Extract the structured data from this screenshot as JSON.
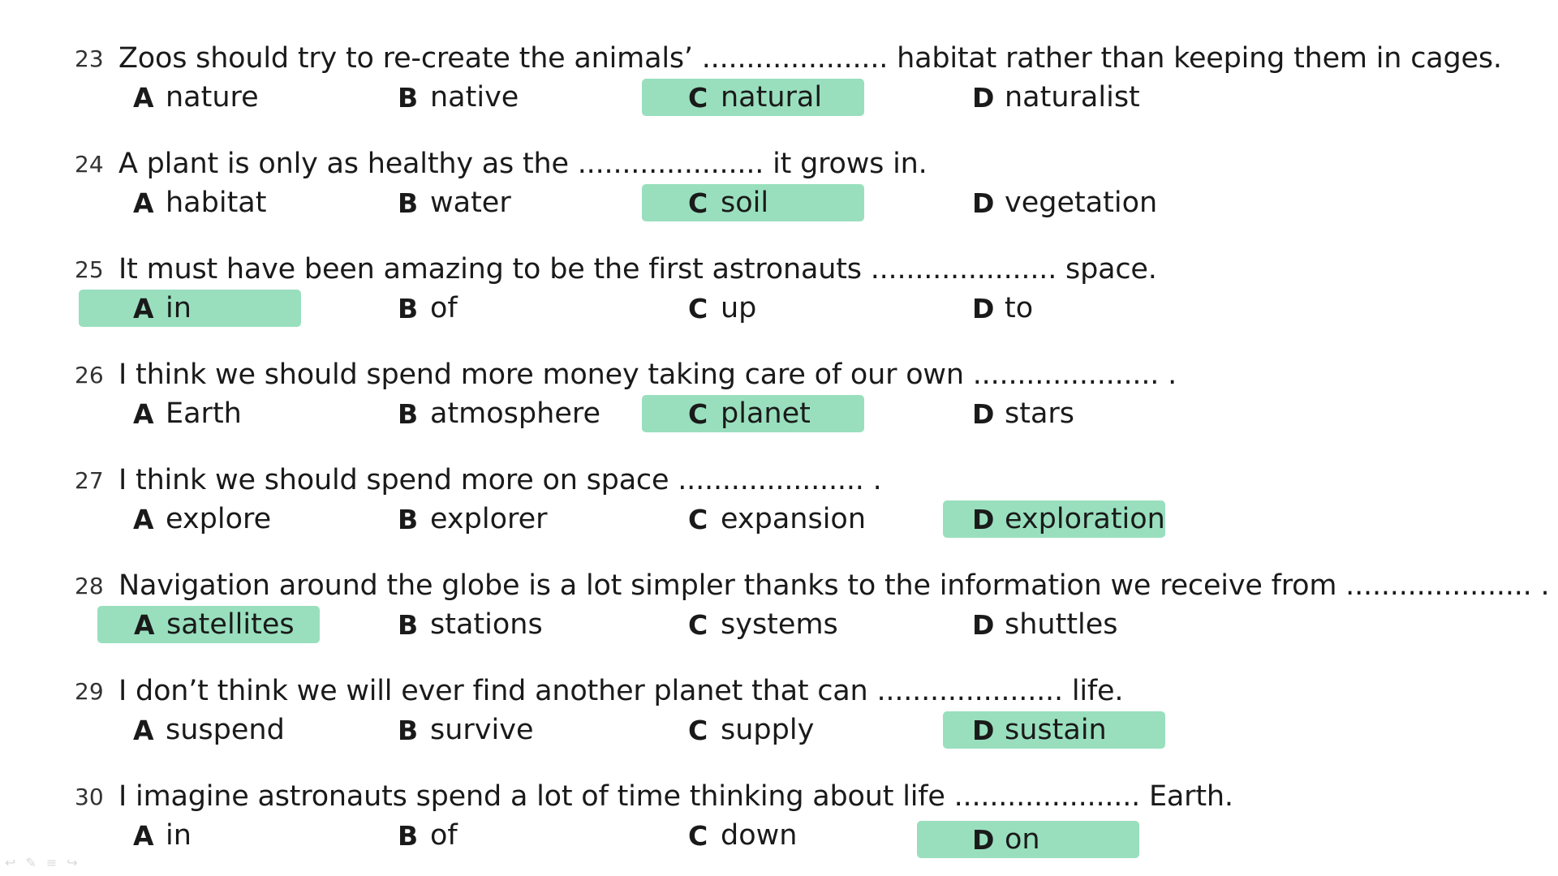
{
  "questions": [
    {
      "num": "23",
      "text": "Zoos should try to re-create the animals’ ..................... habitat rather than keeping them in cages.",
      "options": [
        {
          "letter": "A",
          "word": "nature"
        },
        {
          "letter": "B",
          "word": "native"
        },
        {
          "letter": "C",
          "word": "natural"
        },
        {
          "letter": "D",
          "word": "naturalist"
        }
      ],
      "selected": "C"
    },
    {
      "num": "24",
      "text": "A plant is only as healthy as the ..................... it grows in.",
      "options": [
        {
          "letter": "A",
          "word": "habitat"
        },
        {
          "letter": "B",
          "word": "water"
        },
        {
          "letter": "C",
          "word": "soil"
        },
        {
          "letter": "D",
          "word": "vegetation"
        }
      ],
      "selected": "C"
    },
    {
      "num": "25",
      "text": "It must have been amazing to be the first astronauts ..................... space.",
      "options": [
        {
          "letter": "A",
          "word": "in"
        },
        {
          "letter": "B",
          "word": "of"
        },
        {
          "letter": "C",
          "word": "up"
        },
        {
          "letter": "D",
          "word": "to"
        }
      ],
      "selected": "A"
    },
    {
      "num": "26",
      "text": "I think we should spend more money taking care of our own ..................... .",
      "options": [
        {
          "letter": "A",
          "word": "Earth"
        },
        {
          "letter": "B",
          "word": "atmosphere"
        },
        {
          "letter": "C",
          "word": "planet"
        },
        {
          "letter": "D",
          "word": "stars"
        }
      ],
      "selected": "C"
    },
    {
      "num": "27",
      "text": "I think we should spend more on space ..................... .",
      "options": [
        {
          "letter": "A",
          "word": "explore"
        },
        {
          "letter": "B",
          "word": "explorer"
        },
        {
          "letter": "C",
          "word": "expansion"
        },
        {
          "letter": "D",
          "word": "exploration"
        }
      ],
      "selected": "D"
    },
    {
      "num": "28",
      "text": "Navigation around the globe is a lot simpler thanks to the information we receive from ..................... .",
      "options": [
        {
          "letter": "A",
          "word": "satellites"
        },
        {
          "letter": "B",
          "word": "stations"
        },
        {
          "letter": "C",
          "word": "systems"
        },
        {
          "letter": "D",
          "word": "shuttles"
        }
      ],
      "selected": "A"
    },
    {
      "num": "29",
      "text": "I don’t think we will ever find another planet that can ..................... life.",
      "options": [
        {
          "letter": "A",
          "word": "suspend"
        },
        {
          "letter": "B",
          "word": "survive"
        },
        {
          "letter": "C",
          "word": "supply"
        },
        {
          "letter": "D",
          "word": "sustain"
        }
      ],
      "selected": "D"
    },
    {
      "num": "30",
      "text": "I imagine astronauts spend a lot of time thinking about life ..................... Earth.",
      "options": [
        {
          "letter": "A",
          "word": "in"
        },
        {
          "letter": "B",
          "word": "of"
        },
        {
          "letter": "C",
          "word": "down"
        },
        {
          "letter": "D",
          "word": "on"
        }
      ],
      "selected": "D"
    }
  ],
  "colors": {
    "highlight": "#99dfbe",
    "text": "#1a1a1a"
  },
  "toolbar_icons": [
    "back-arrow-icon",
    "pen-icon",
    "menu-icon",
    "forward-arrow-icon"
  ]
}
